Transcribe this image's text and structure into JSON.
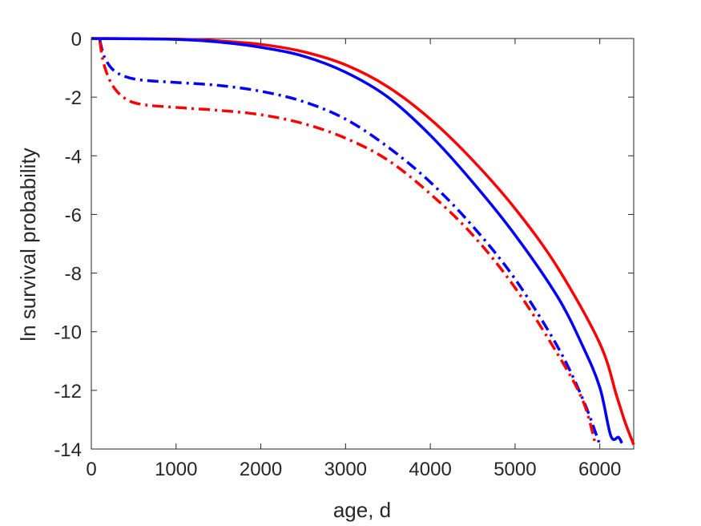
{
  "chart_data": {
    "type": "line",
    "title": "",
    "xlabel": "age, d",
    "ylabel": "ln survival probability",
    "xlim": [
      0,
      6400
    ],
    "ylim": [
      -14,
      0
    ],
    "x_ticks": [
      0,
      1000,
      2000,
      3000,
      4000,
      5000,
      6000
    ],
    "y_ticks": [
      0,
      -2,
      -4,
      -6,
      -8,
      -10,
      -12,
      -14
    ],
    "x_tick_labels": [
      "0",
      "1000",
      "2000",
      "3000",
      "4000",
      "5000",
      "6000"
    ],
    "y_tick_labels": [
      "0",
      "-2",
      "-4",
      "-6",
      "-8",
      "-10",
      "-12",
      "-14"
    ],
    "grid": false,
    "box": true,
    "series": [
      {
        "color": "#ff0000",
        "style": "solid",
        "points": [
          [
            0,
            0
          ],
          [
            1000,
            -0.02
          ],
          [
            1500,
            -0.08
          ],
          [
            2000,
            -0.2
          ],
          [
            2500,
            -0.45
          ],
          [
            3000,
            -0.9
          ],
          [
            3500,
            -1.65
          ],
          [
            4000,
            -2.75
          ],
          [
            4500,
            -4.15
          ],
          [
            5000,
            -5.8
          ],
          [
            5500,
            -7.8
          ],
          [
            6000,
            -10.4
          ],
          [
            6200,
            -12.2
          ],
          [
            6300,
            -13.1
          ],
          [
            6400,
            -13.85
          ]
        ]
      },
      {
        "color": "#0000ff",
        "style": "solid",
        "points": [
          [
            0,
            0
          ],
          [
            1000,
            -0.03
          ],
          [
            1500,
            -0.12
          ],
          [
            2000,
            -0.3
          ],
          [
            2500,
            -0.6
          ],
          [
            3000,
            -1.15
          ],
          [
            3500,
            -2.0
          ],
          [
            4000,
            -3.3
          ],
          [
            4500,
            -4.9
          ],
          [
            5000,
            -6.7
          ],
          [
            5500,
            -8.8
          ],
          [
            5800,
            -10.5
          ],
          [
            6000,
            -11.9
          ],
          [
            6130,
            -13.55
          ],
          [
            6220,
            -13.6
          ],
          [
            6260,
            -13.8
          ]
        ]
      },
      {
        "color": "#0000ff",
        "style": "dashdot",
        "points": [
          [
            100,
            -0.05
          ],
          [
            150,
            -0.6
          ],
          [
            250,
            -1.05
          ],
          [
            400,
            -1.3
          ],
          [
            600,
            -1.42
          ],
          [
            1000,
            -1.5
          ],
          [
            1500,
            -1.6
          ],
          [
            2000,
            -1.8
          ],
          [
            2500,
            -2.15
          ],
          [
            3000,
            -2.75
          ],
          [
            3500,
            -3.7
          ],
          [
            4000,
            -4.9
          ],
          [
            4500,
            -6.4
          ],
          [
            5000,
            -8.2
          ],
          [
            5500,
            -10.5
          ],
          [
            5800,
            -12.3
          ],
          [
            6000,
            -13.85
          ]
        ]
      },
      {
        "color": "#ff0000",
        "style": "dashdot",
        "points": [
          [
            100,
            -0.1
          ],
          [
            150,
            -0.9
          ],
          [
            250,
            -1.6
          ],
          [
            400,
            -2.05
          ],
          [
            600,
            -2.25
          ],
          [
            1000,
            -2.35
          ],
          [
            1500,
            -2.45
          ],
          [
            2000,
            -2.6
          ],
          [
            2500,
            -2.9
          ],
          [
            3000,
            -3.4
          ],
          [
            3500,
            -4.15
          ],
          [
            4000,
            -5.3
          ],
          [
            4500,
            -6.7
          ],
          [
            5000,
            -8.5
          ],
          [
            5500,
            -10.75
          ],
          [
            5800,
            -12.35
          ],
          [
            5950,
            -13.85
          ]
        ]
      }
    ]
  }
}
